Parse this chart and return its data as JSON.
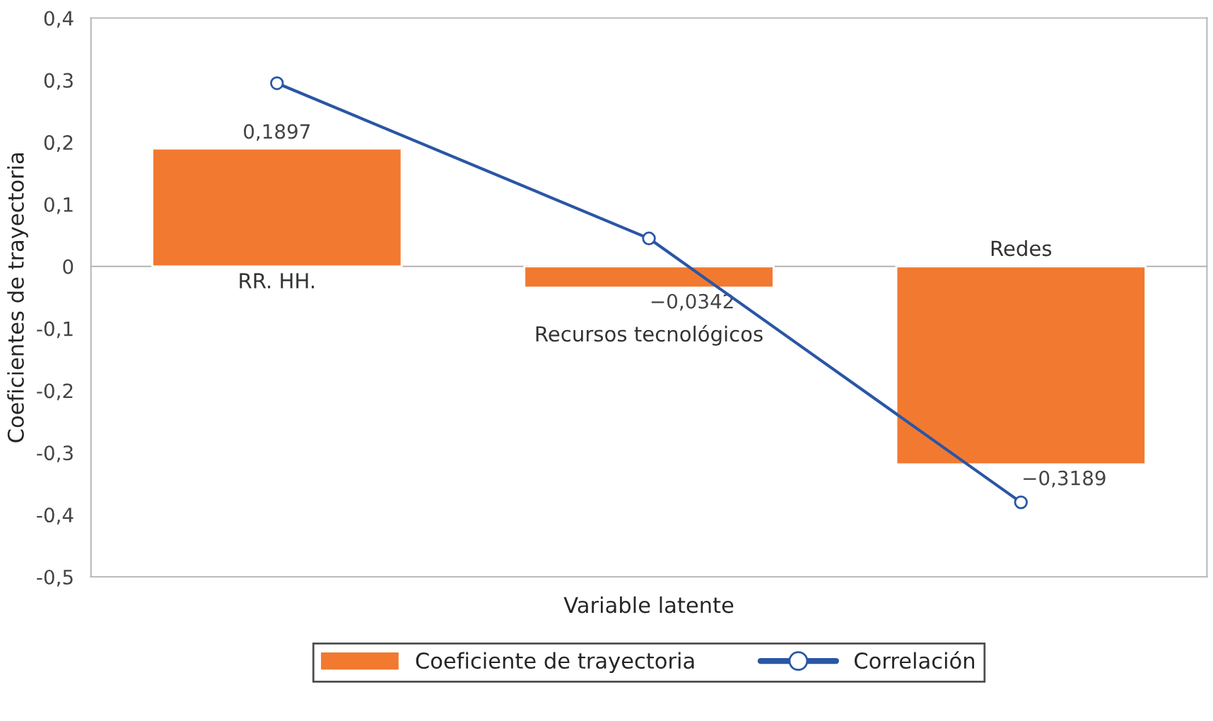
{
  "chart_data": {
    "type": "bar",
    "xlabel": "Variable latente",
    "ylabel": "Coeficientes de trayectoria",
    "categories": [
      "RR. HH.",
      "Recursos tecnológicos",
      "Redes"
    ],
    "series": [
      {
        "name": "Coeficiente de trayectoria",
        "color": "#f27930",
        "values": [
          0.1897,
          -0.0342,
          -0.3189
        ],
        "value_labels": [
          "0,1897",
          "−0,0342",
          "−0,3189"
        ]
      },
      {
        "name": "Correlación",
        "type": "line",
        "color": "#2a56a5",
        "values": [
          0.295,
          0.045,
          -0.38
        ],
        "marker": "circle"
      }
    ],
    "ylim": [
      -0.5,
      0.4
    ],
    "yticks": [
      {
        "value": -0.5,
        "label": "-0,5"
      },
      {
        "value": -0.4,
        "label": "-0,4"
      },
      {
        "value": -0.3,
        "label": "-0,3"
      },
      {
        "value": -0.2,
        "label": "-0,2"
      },
      {
        "value": -0.1,
        "label": "-0,1"
      },
      0,
      {
        "value": 0.1,
        "label": "0,1"
      },
      {
        "value": 0.2,
        "label": "0,2"
      },
      {
        "value": 0.3,
        "label": "0,3"
      },
      {
        "value": 0.4,
        "label": "0,4"
      }
    ],
    "legend": "bottom"
  }
}
